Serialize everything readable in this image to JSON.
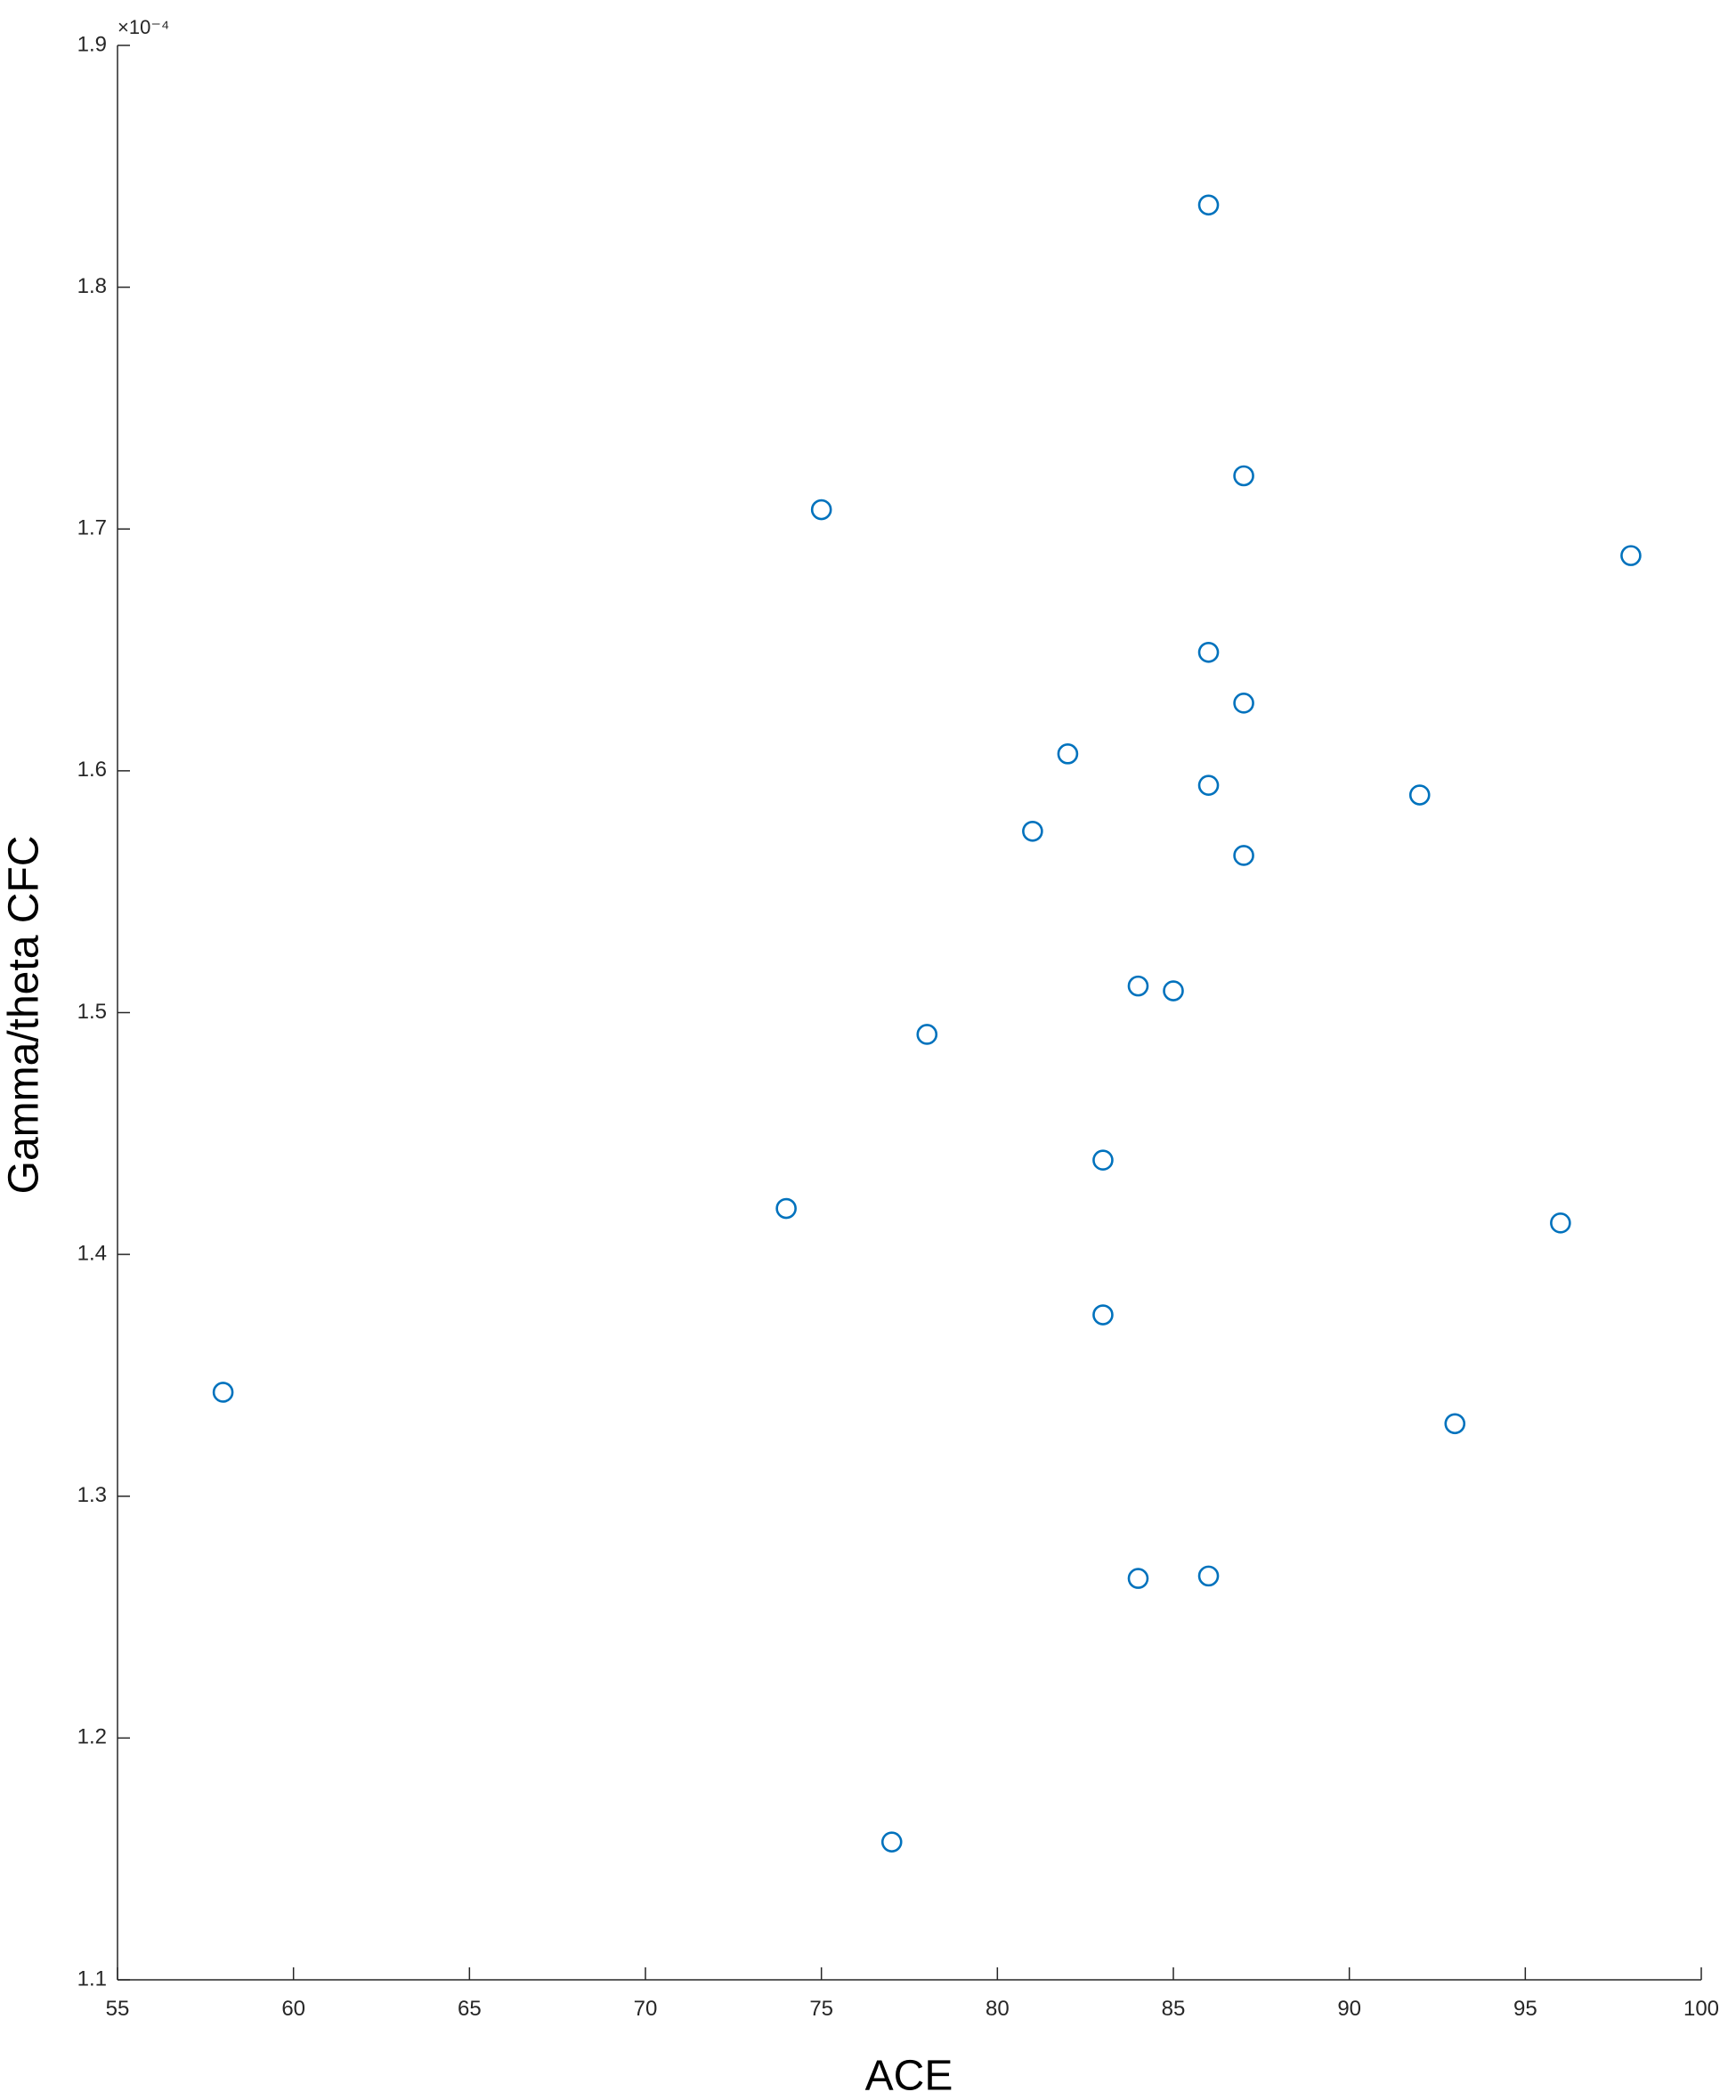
{
  "chart_data": {
    "type": "scatter",
    "xlabel": "ACE",
    "ylabel": "Gamma/theta CFC",
    "y_multiplier": "×10⁻⁴",
    "xlim": [
      55,
      100
    ],
    "xticks": [
      55,
      60,
      65,
      70,
      75,
      80,
      85,
      90,
      95,
      100
    ],
    "ylim": [
      1.1,
      1.9
    ],
    "yticks": [
      1.1,
      1.2,
      1.3,
      1.4,
      1.5,
      1.6,
      1.7,
      1.8,
      1.9
    ],
    "grid": false,
    "series": [
      {
        "color": "#0072bd",
        "x": [
          86,
          87,
          75,
          98,
          86,
          87,
          82,
          86,
          92,
          81,
          87,
          84,
          85,
          78,
          83,
          74,
          96,
          83,
          58,
          93,
          86,
          84,
          77
        ],
        "values": [
          1.834,
          1.722,
          1.708,
          1.689,
          1.649,
          1.628,
          1.607,
          1.594,
          1.59,
          1.575,
          1.565,
          1.511,
          1.509,
          1.491,
          1.439,
          1.419,
          1.413,
          1.375,
          1.343,
          1.33,
          1.267,
          1.266,
          1.157
        ]
      }
    ]
  }
}
